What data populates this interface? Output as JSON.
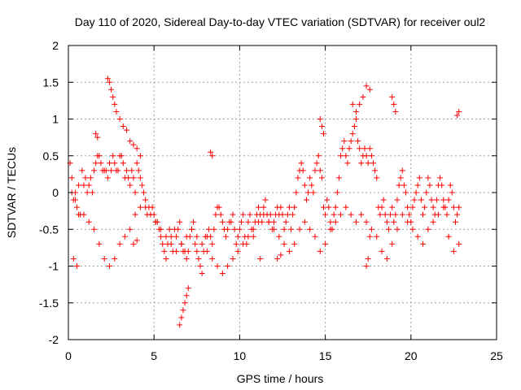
{
  "chart_data": {
    "type": "scatter",
    "title": "Day 110 of 2020, Sidereal Day-to-day VTEC variation (SDTVAR) for receiver oul2",
    "xlabel": "GPS time / hours",
    "ylabel": "SDTVAR / TECUs",
    "xlim": [
      0,
      25
    ],
    "ylim": [
      -2,
      2
    ],
    "x_ticks": [
      0,
      5,
      10,
      15,
      20,
      25
    ],
    "y_ticks": [
      -2,
      -1.5,
      -1,
      -0.5,
      0,
      0.5,
      1,
      1.5,
      2
    ],
    "x_tick_labels": [
      "0",
      "5",
      "10",
      "15",
      "20",
      "25"
    ],
    "y_tick_labels": [
      "-2",
      "-1.5",
      "-1",
      "-0.5",
      "0",
      "0.5",
      "1",
      "1.5",
      "2"
    ],
    "grid": true,
    "marker": "+",
    "color": "#ff0000",
    "series": [
      {
        "name": "SDTVAR",
        "x": [
          0.1,
          0.2,
          0.3,
          0.4,
          0.5,
          0.6,
          0.7,
          0.8,
          0.9,
          1.0,
          1.1,
          1.2,
          1.3,
          1.4,
          1.5,
          1.6,
          1.7,
          1.8,
          1.9,
          2.0,
          2.1,
          2.2,
          2.3,
          2.4,
          2.5,
          2.6,
          2.7,
          2.8,
          2.9,
          3.0,
          3.1,
          3.2,
          3.3,
          3.4,
          3.5,
          3.6,
          3.7,
          3.8,
          3.9,
          4.0,
          4.1,
          4.2,
          4.3,
          4.4,
          4.5,
          4.6,
          4.7,
          4.8,
          4.9,
          5.0,
          5.1,
          5.2,
          5.3,
          5.4,
          5.5,
          5.6,
          5.7,
          5.8,
          5.9,
          6.0,
          6.1,
          6.2,
          6.3,
          6.4,
          6.5,
          6.6,
          6.7,
          6.8,
          6.9,
          7.0,
          7.1,
          7.2,
          7.3,
          7.4,
          7.5,
          7.6,
          7.7,
          7.8,
          7.9,
          8.0,
          8.1,
          8.2,
          8.3,
          8.4,
          8.5,
          8.6,
          8.7,
          8.8,
          8.9,
          9.0,
          9.1,
          9.2,
          9.3,
          9.4,
          9.5,
          9.6,
          9.7,
          9.8,
          9.9,
          10.0,
          10.1,
          10.2,
          10.3,
          10.4,
          10.5,
          10.6,
          10.7,
          10.8,
          10.9,
          11.0,
          11.1,
          11.2,
          11.3,
          11.4,
          11.5,
          11.6,
          11.7,
          11.8,
          11.9,
          12.0,
          12.1,
          12.2,
          12.3,
          12.4,
          12.5,
          12.6,
          12.7,
          12.8,
          12.9,
          13.0,
          13.1,
          13.2,
          13.3,
          13.4,
          13.5,
          13.6,
          13.7,
          13.8,
          13.9,
          14.0,
          14.1,
          14.2,
          14.3,
          14.4,
          14.5,
          14.6,
          14.7,
          14.8,
          14.9,
          15.0,
          15.1,
          15.2,
          15.3,
          15.4,
          15.5,
          15.6,
          15.7,
          15.8,
          15.9,
          16.0,
          16.1,
          16.2,
          16.3,
          16.4,
          16.5,
          16.6,
          16.7,
          16.8,
          16.9,
          17.0,
          17.1,
          17.2,
          17.3,
          17.4,
          17.5,
          17.6,
          17.7,
          17.8,
          17.9,
          18.0,
          18.1,
          18.2,
          18.3,
          18.4,
          18.5,
          18.6,
          18.7,
          18.8,
          18.9,
          19.0,
          19.1,
          19.2,
          19.3,
          19.4,
          19.5,
          19.6,
          19.7,
          19.8,
          19.9,
          20.0,
          20.1,
          20.2,
          20.3,
          20.4,
          20.5,
          20.6,
          20.7,
          20.8,
          20.9,
          21.0,
          21.1,
          21.2,
          21.3,
          21.4,
          21.5,
          21.6,
          21.7,
          21.8,
          21.9,
          22.0,
          22.1,
          22.2,
          22.3,
          22.4,
          22.5,
          22.6,
          22.7,
          22.8,
          0.2,
          0.4,
          0.6,
          0.9,
          1.2,
          1.5,
          1.8,
          2.1,
          2.4,
          2.7,
          3.0,
          3.3,
          3.6,
          3.9,
          4.2,
          4.5,
          4.8,
          5.1,
          5.4,
          5.7,
          6.0,
          6.3,
          6.6,
          6.9,
          7.2,
          7.5,
          7.8,
          8.1,
          8.4,
          8.7,
          9.0,
          9.3,
          9.6,
          9.9,
          10.2,
          10.5,
          10.8,
          11.1,
          11.4,
          11.7,
          12.0,
          12.3,
          12.6,
          12.9,
          13.2,
          13.5,
          13.8,
          14.1,
          14.4,
          14.7,
          15.0,
          15.3,
          15.6,
          15.9,
          16.2,
          16.5,
          16.8,
          17.1,
          17.4,
          17.7,
          18.0,
          18.3,
          18.6,
          18.9,
          19.2,
          19.5,
          19.8,
          20.1,
          20.4,
          20.7,
          21.0,
          21.3,
          21.6,
          21.9,
          22.2,
          22.5,
          22.8,
          1.6,
          1.7,
          2.3,
          2.4,
          2.5,
          2.6,
          2.7,
          2.8,
          3.0,
          3.2,
          3.4,
          3.6,
          3.8,
          4.0,
          4.2,
          6.5,
          6.6,
          6.7,
          6.8,
          6.9,
          7.0,
          8.3,
          8.4,
          12.2,
          12.4,
          14.7,
          14.8,
          14.9,
          16.6,
          16.8,
          17.0,
          17.2,
          17.4,
          17.6,
          17.4,
          17.5,
          17.6,
          18.9,
          19.0,
          19.1,
          22.7,
          22.8,
          3.8,
          4.0,
          0.3,
          0.5,
          11.2
        ],
        "y": [
          0.4,
          0.2,
          -0.1,
          0.0,
          -0.2,
          0.1,
          -0.3,
          0.3,
          0.1,
          0.2,
          0.0,
          0.1,
          0.2,
          0.0,
          0.3,
          0.4,
          0.5,
          0.5,
          0.4,
          0.3,
          0.3,
          0.3,
          0.2,
          0.4,
          0.3,
          0.5,
          0.4,
          0.3,
          0.3,
          0.5,
          0.5,
          0.4,
          0.2,
          0.3,
          0.2,
          0.1,
          0.3,
          0.2,
          0.0,
          0.4,
          0.3,
          0.2,
          0.1,
          0.0,
          -0.2,
          -0.3,
          -0.2,
          -0.3,
          -0.2,
          -0.3,
          -0.4,
          -0.4,
          -0.5,
          -0.6,
          -0.7,
          -0.8,
          -0.9,
          -0.7,
          -0.5,
          -0.6,
          -0.8,
          -0.5,
          -0.6,
          -0.5,
          -0.4,
          -0.7,
          -0.8,
          -0.8,
          -0.9,
          -0.8,
          -0.6,
          -0.5,
          -0.4,
          -0.7,
          -0.8,
          -0.9,
          -1.0,
          -1.1,
          -0.8,
          -0.6,
          -0.6,
          -0.5,
          -0.6,
          -0.7,
          -0.5,
          -0.3,
          -0.2,
          -0.2,
          -0.3,
          -0.4,
          -0.5,
          -0.6,
          -0.5,
          -0.4,
          -0.4,
          -0.3,
          -0.5,
          -0.7,
          -0.6,
          -0.5,
          -0.4,
          -0.3,
          -0.6,
          -0.7,
          -0.4,
          -0.3,
          -0.5,
          -0.6,
          -0.4,
          -0.3,
          -0.2,
          -0.3,
          -0.4,
          -0.2,
          -0.1,
          -0.3,
          -0.4,
          -0.3,
          -0.5,
          -0.4,
          -0.3,
          -0.2,
          -0.3,
          -0.2,
          -0.3,
          -0.5,
          -0.4,
          -0.3,
          -0.2,
          -0.5,
          -0.3,
          -0.2,
          0.0,
          0.2,
          0.3,
          0.4,
          0.3,
          0.1,
          -0.1,
          0.0,
          0.2,
          0.1,
          0.0,
          0.3,
          0.4,
          0.5,
          0.3,
          0.2,
          -0.2,
          -0.3,
          -0.1,
          -0.2,
          -0.4,
          -0.5,
          -0.3,
          -0.2,
          0.0,
          0.2,
          0.5,
          0.6,
          0.7,
          0.5,
          0.4,
          0.6,
          0.7,
          0.8,
          0.9,
          1.0,
          0.7,
          0.6,
          0.4,
          0.5,
          0.6,
          0.5,
          0.4,
          0.6,
          0.5,
          0.4,
          0.3,
          0.2,
          -0.2,
          -0.3,
          -0.2,
          -0.1,
          -0.3,
          -0.4,
          -0.5,
          -0.3,
          -0.2,
          -0.4,
          -0.3,
          -0.1,
          0.1,
          0.2,
          0.3,
          0.1,
          0.0,
          -0.2,
          -0.3,
          -0.4,
          -0.2,
          -0.1,
          0.0,
          0.1,
          0.2,
          -0.1,
          -0.3,
          -0.2,
          0.0,
          0.2,
          0.1,
          -0.1,
          -0.2,
          -0.3,
          -0.1,
          0.1,
          0.2,
          0.1,
          -0.1,
          -0.2,
          -0.3,
          -0.1,
          0.1,
          0.0,
          -0.2,
          -0.4,
          -0.3,
          -0.2,
          0.0,
          -0.1,
          -0.3,
          -0.3,
          -0.4,
          -0.5,
          -0.7,
          -0.9,
          -1.0,
          -0.9,
          -0.7,
          -0.6,
          -0.5,
          -0.3,
          -0.2,
          -0.1,
          -0.3,
          -0.4,
          -0.5,
          -0.6,
          -0.7,
          -0.8,
          -0.7,
          -0.6,
          -0.5,
          -0.6,
          -0.7,
          -0.8,
          -0.9,
          -1.0,
          -1.1,
          -1.0,
          -0.9,
          -0.8,
          -0.7,
          -0.6,
          -0.5,
          -0.4,
          -0.3,
          -0.4,
          -0.5,
          -0.6,
          -0.7,
          -0.8,
          -0.7,
          -0.5,
          -0.4,
          -0.5,
          -0.6,
          -0.8,
          -0.7,
          -0.5,
          -0.4,
          -0.3,
          -0.2,
          -0.3,
          -0.4,
          -0.3,
          -0.4,
          -0.5,
          -0.6,
          -0.8,
          -0.9,
          -0.7,
          -0.5,
          -0.3,
          -0.4,
          -0.5,
          -0.6,
          -0.7,
          -0.5,
          -0.4,
          -0.3,
          -0.2,
          -0.6,
          -0.8,
          -0.7,
          0.8,
          0.75,
          1.55,
          1.5,
          1.4,
          1.3,
          1.2,
          1.1,
          1.0,
          0.9,
          0.85,
          0.7,
          0.65,
          0.6,
          0.5,
          -1.8,
          -1.7,
          -1.6,
          -1.5,
          -1.4,
          -1.3,
          0.55,
          0.5,
          -0.9,
          -0.85,
          1.0,
          0.9,
          0.8,
          1.2,
          1.1,
          1.2,
          1.3,
          1.45,
          1.4,
          -1.0,
          -0.9,
          -0.6,
          1.3,
          1.2,
          1.1,
          1.05,
          1.1,
          -0.7,
          -0.65,
          -0.9,
          -1.0,
          -0.9
        ]
      }
    ]
  }
}
